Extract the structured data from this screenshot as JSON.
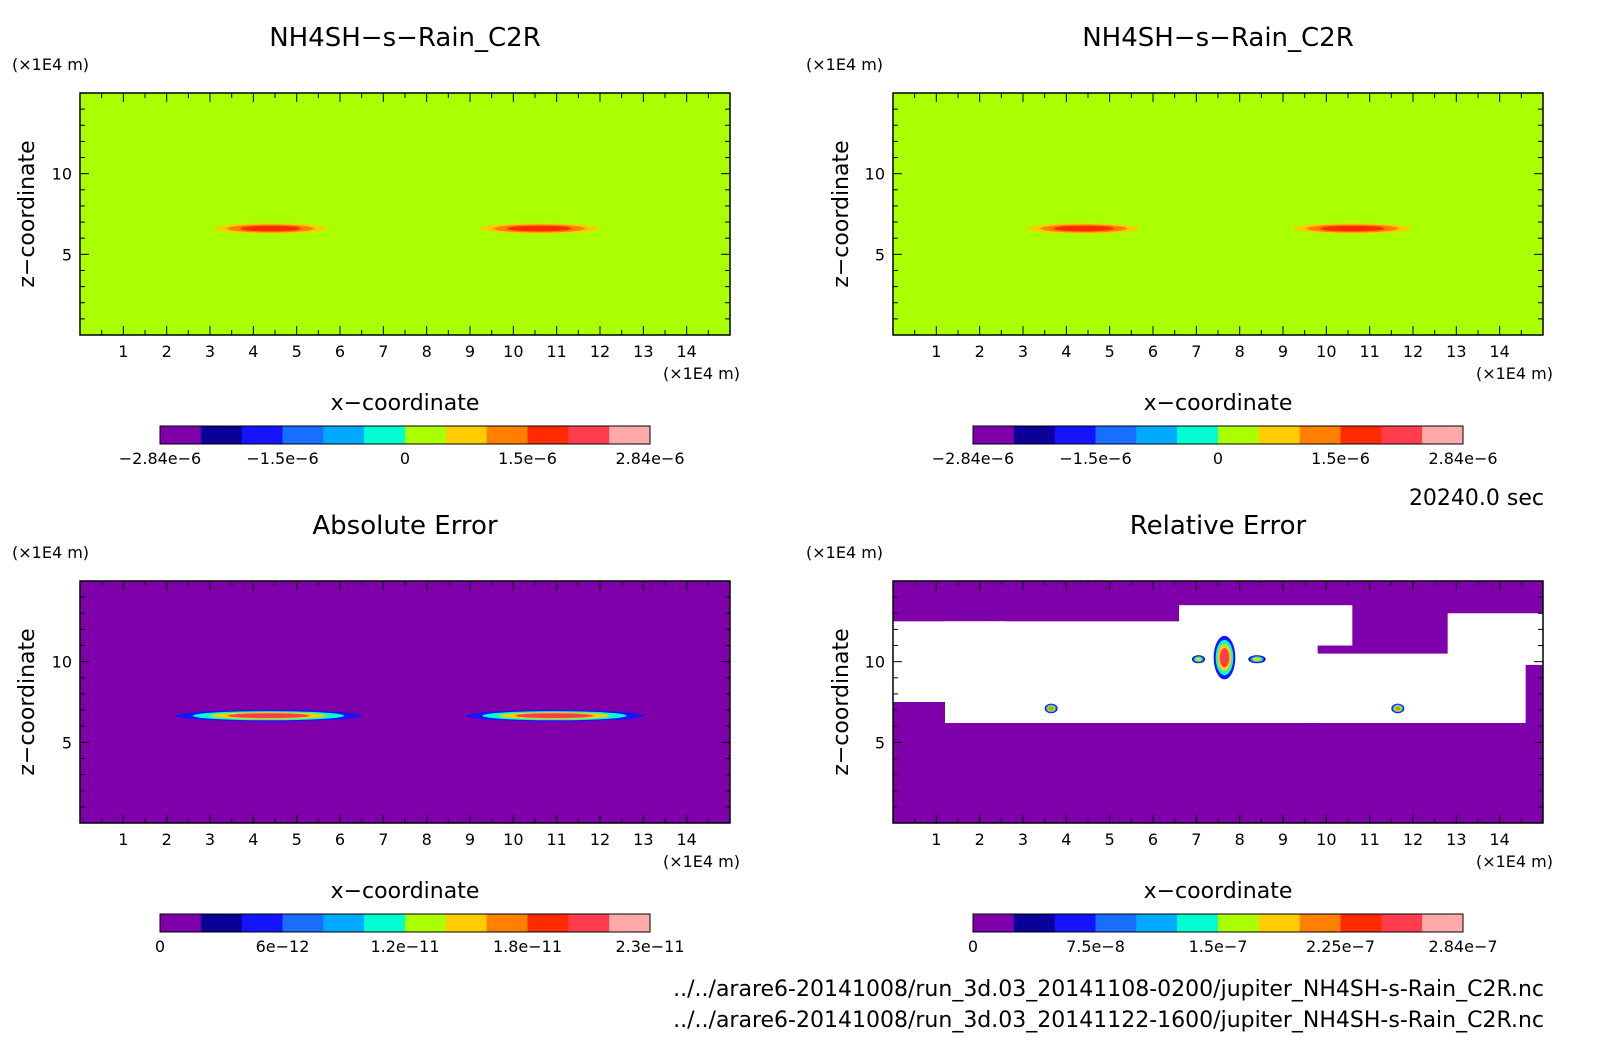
{
  "colors": {
    "background": "#ffffff",
    "field_main": "#aaff00",
    "field_error": "#7f00aa",
    "missing": "#ffffff",
    "scale": [
      "#7f00aa",
      "#0a0099",
      "#1414ff",
      "#1a6eff",
      "#00aaff",
      "#00ffd0",
      "#aaff00",
      "#ffcc00",
      "#ff7f00",
      "#ff2a00",
      "#ff3d4d",
      "#ffaaaa"
    ]
  },
  "time_label": "20240.0 sec",
  "files": [
    "../../arare6-20141008/run_3d.03_20141108-0200/jupiter_NH4SH-s-Rain_C2R.nc",
    "../../arare6-20141008/run_3d.03_20141122-1600/jupiter_NH4SH-s-Rain_C2R.nc"
  ],
  "chart_data": [
    {
      "type": "heatmap",
      "title": "NH4SH−s−Rain_C2R",
      "xlabel": "x−coordinate",
      "ylabel": "z−coordinate",
      "x_unit": "(×1E4 m)",
      "y_unit": "(×1E4 m)",
      "xlim": [
        0,
        15
      ],
      "ylim": [
        0,
        15
      ],
      "x_ticks": [
        1,
        2,
        3,
        4,
        5,
        6,
        7,
        8,
        9,
        10,
        11,
        12,
        13,
        14
      ],
      "y_ticks": [
        5,
        10
      ],
      "colorbar": {
        "ticks": [
          "−2.84e−6",
          "−1.5e−6",
          "0",
          "1.5e−6",
          "2.84e−6"
        ],
        "min": -2.84e-06,
        "max": 2.84e-06
      },
      "background_level": 0,
      "features": [
        {
          "x": [
            2.8,
            6.0
          ],
          "z": [
            6.2,
            7.0
          ],
          "max": 1.6e-06
        },
        {
          "x": [
            8.9,
            12.3
          ],
          "z": [
            6.2,
            7.0
          ],
          "max": 1.6e-06
        }
      ]
    },
    {
      "type": "heatmap",
      "title": "NH4SH−s−Rain_C2R",
      "xlabel": "x−coordinate",
      "ylabel": "z−coordinate",
      "x_unit": "(×1E4 m)",
      "y_unit": "(×1E4 m)",
      "xlim": [
        0,
        15
      ],
      "ylim": [
        0,
        15
      ],
      "x_ticks": [
        1,
        2,
        3,
        4,
        5,
        6,
        7,
        8,
        9,
        10,
        11,
        12,
        13,
        14
      ],
      "y_ticks": [
        5,
        10
      ],
      "colorbar": {
        "ticks": [
          "−2.84e−6",
          "−1.5e−6",
          "0",
          "1.5e−6",
          "2.84e−6"
        ],
        "min": -2.84e-06,
        "max": 2.84e-06
      },
      "background_level": 0,
      "features": [
        {
          "x": [
            2.8,
            6.0
          ],
          "z": [
            6.2,
            7.0
          ],
          "max": 1.6e-06
        },
        {
          "x": [
            8.9,
            12.3
          ],
          "z": [
            6.2,
            7.0
          ],
          "max": 1.6e-06
        }
      ]
    },
    {
      "type": "heatmap",
      "title": "Absolute Error",
      "xlabel": "x−coordinate",
      "ylabel": "z−coordinate",
      "x_unit": "(×1E4 m)",
      "y_unit": "(×1E4 m)",
      "xlim": [
        0,
        15
      ],
      "ylim": [
        0,
        15
      ],
      "x_ticks": [
        1,
        2,
        3,
        4,
        5,
        6,
        7,
        8,
        9,
        10,
        11,
        12,
        13,
        14
      ],
      "y_ticks": [
        5,
        10
      ],
      "colorbar": {
        "ticks": [
          "0",
          "6e−12",
          "1.2e−11",
          "1.8e−11",
          "2.3e−11"
        ],
        "min": 0,
        "max": 2.3e-11
      },
      "background_level": 0,
      "features": [
        {
          "x": [
            2.2,
            6.5
          ],
          "z": [
            6.3,
            7.0
          ],
          "max": 2e-11
        },
        {
          "x": [
            8.9,
            13.0
          ],
          "z": [
            6.3,
            7.0
          ],
          "max": 2e-11
        }
      ]
    },
    {
      "type": "heatmap",
      "title": "Relative Error",
      "xlabel": "x−coordinate",
      "ylabel": "z−coordinate",
      "x_unit": "(×1E4 m)",
      "y_unit": "(×1E4 m)",
      "xlim": [
        0,
        15
      ],
      "ylim": [
        0,
        15
      ],
      "x_ticks": [
        1,
        2,
        3,
        4,
        5,
        6,
        7,
        8,
        9,
        10,
        11,
        12,
        13,
        14
      ],
      "y_ticks": [
        5,
        10
      ],
      "colorbar": {
        "ticks": [
          "0",
          "7.5e−8",
          "1.5e−7",
          "2.25e−7",
          "2.84e−7"
        ],
        "min": 0,
        "max": 2.84e-07
      },
      "background_level": 0,
      "missing_regions": [
        {
          "x": [
            0,
            2.6
          ],
          "z": [
            7.5,
            12.5
          ]
        },
        {
          "x": [
            1.2,
            9.8
          ],
          "z": [
            6.2,
            12.5
          ]
        },
        {
          "x": [
            6.6,
            10.6
          ],
          "z": [
            11.0,
            13.5
          ]
        },
        {
          "x": [
            9.5,
            14.6
          ],
          "z": [
            6.2,
            10.5
          ]
        },
        {
          "x": [
            12.8,
            15.0
          ],
          "z": [
            9.8,
            13.0
          ]
        }
      ],
      "features": [
        {
          "x": [
            7.4,
            7.9
          ],
          "z": [
            8.9,
            11.6
          ],
          "max": 2.5e-07
        },
        {
          "x": [
            3.5,
            3.8
          ],
          "z": [
            6.8,
            7.4
          ],
          "max": 2e-07
        },
        {
          "x": [
            11.5,
            11.8
          ],
          "z": [
            6.8,
            7.4
          ],
          "max": 2e-07
        },
        {
          "x": [
            6.9,
            7.2
          ],
          "z": [
            9.9,
            10.4
          ],
          "max": 1.8e-07
        },
        {
          "x": [
            8.2,
            8.6
          ],
          "z": [
            9.9,
            10.4
          ],
          "max": 1.8e-07
        }
      ]
    }
  ]
}
